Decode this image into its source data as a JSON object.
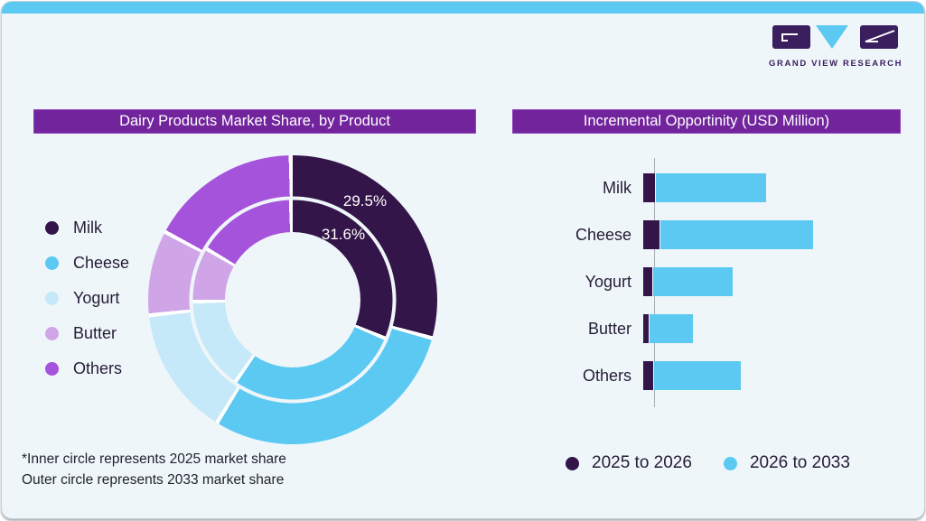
{
  "brand": {
    "name": "GRAND VIEW RESEARCH"
  },
  "left_panel": {
    "title": "Dairy Products Market Share, by Product",
    "footnote_line1": "*Inner circle represents 2025 market share",
    "footnote_line2": "Outer circle represents 2033 market share"
  },
  "right_panel": {
    "title": "Incremental Opportinity (USD Million)"
  },
  "colors": {
    "accent_strip": "#5CC9F2",
    "title_bar": "#71249C",
    "background": "#EFF6FA"
  },
  "chart_data": [
    {
      "type": "pie",
      "subtype": "double-ring-donut",
      "title": "Dairy Products Market Share, by Product",
      "categories": [
        "Milk",
        "Cheese",
        "Yogurt",
        "Butter",
        "Others"
      ],
      "colors": [
        "#331549",
        "#5CC9F2",
        "#C5E9F8",
        "#D0A5E8",
        "#A653DC"
      ],
      "series": [
        {
          "name": "2025 market share (inner circle)",
          "values": [
            31.6,
            28.4,
            15.0,
            8.8,
            16.2
          ]
        },
        {
          "name": "2033 market share (outer circle)",
          "values": [
            29.5,
            29.5,
            14.5,
            9.5,
            17.0
          ]
        }
      ],
      "visible_labels": {
        "outer_milk": "29.5%",
        "inner_milk": "31.6%"
      },
      "legend_position": "left",
      "start_angle_deg": 0,
      "direction": "clockwise"
    },
    {
      "type": "bar",
      "orientation": "horizontal",
      "stacked": true,
      "title": "Incremental Opportinity (USD Million)",
      "categories": [
        "Milk",
        "Cheese",
        "Yogurt",
        "Butter",
        "Others"
      ],
      "series": [
        {
          "name": "2025 to 2026",
          "color": "#331549",
          "values": [
            13,
            18,
            10,
            6,
            11
          ]
        },
        {
          "name": "2026 to 2033",
          "color": "#5CC9F2",
          "values": [
            122,
            169,
            88,
            48,
            96
          ]
        }
      ],
      "value_axis": "unlabeled (relative units, USD Million)",
      "legend_position": "bottom"
    }
  ]
}
